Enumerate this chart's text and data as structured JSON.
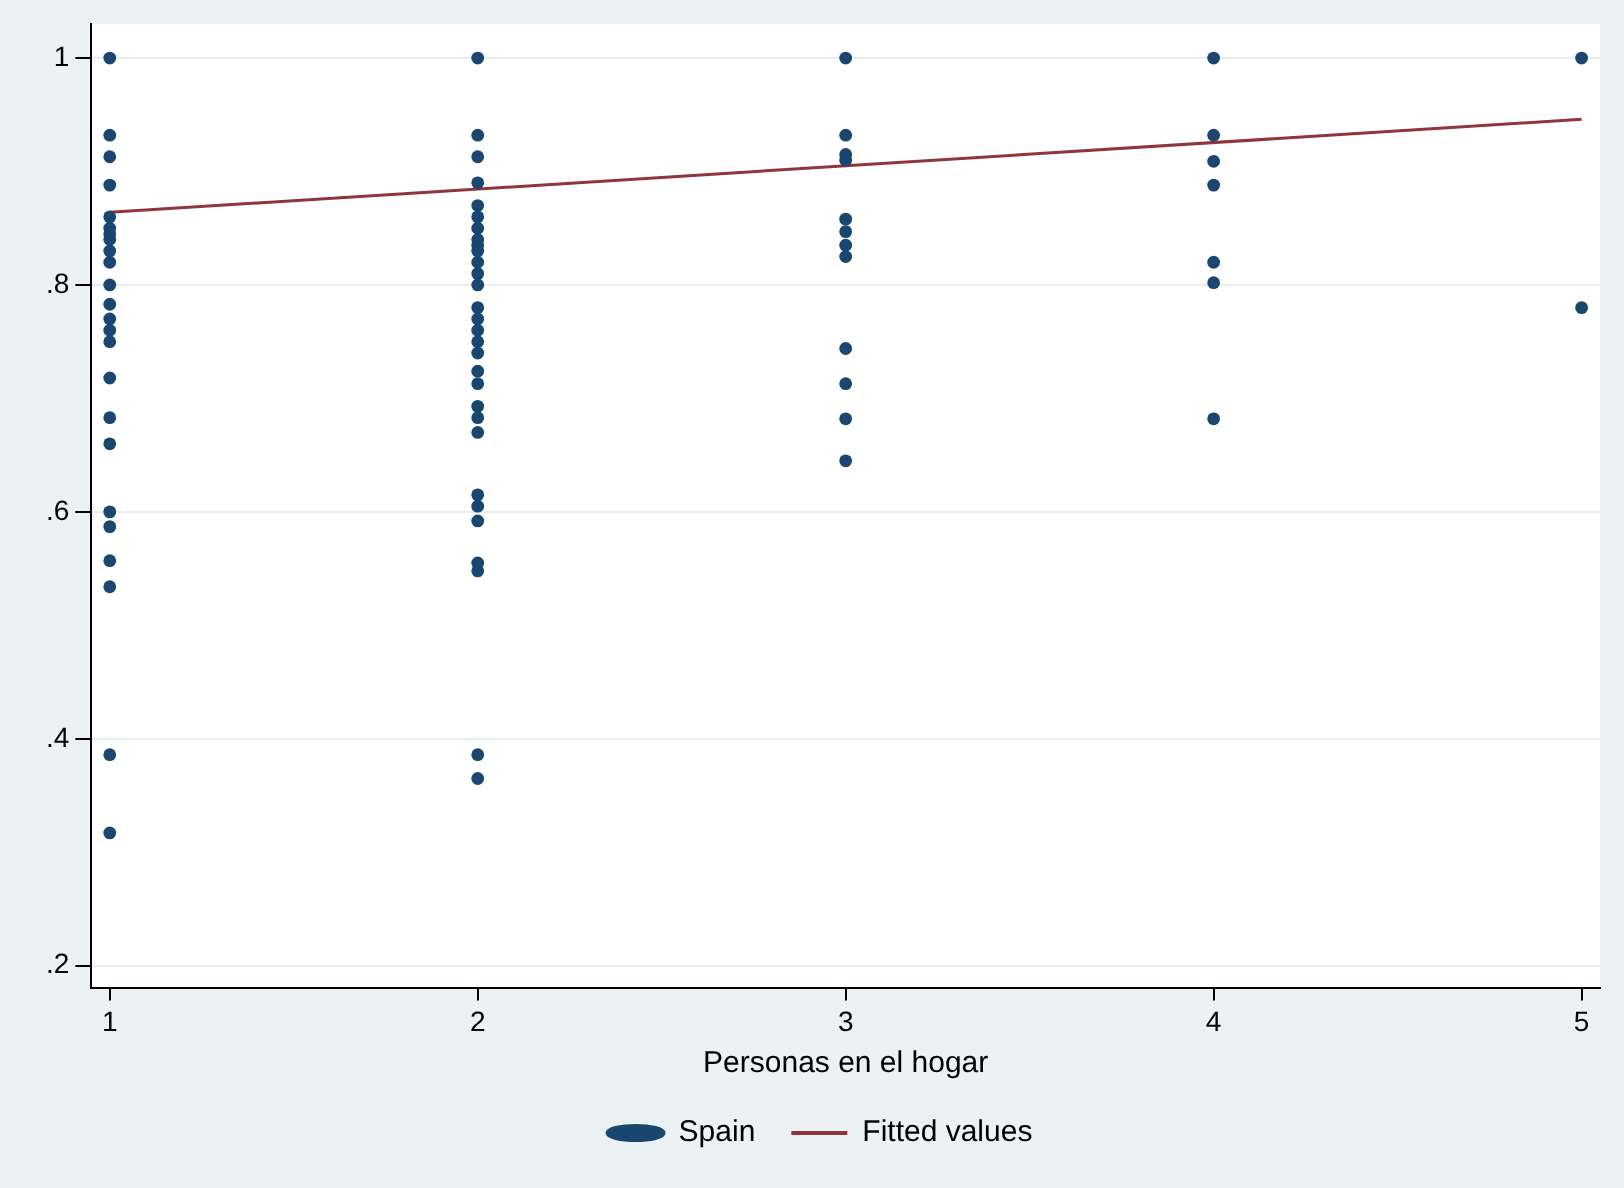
{
  "chart_data": {
    "type": "scatter",
    "xlabel": "Personas en el hogar",
    "xlim": [
      0.95,
      5.05
    ],
    "xticks": [
      1,
      2,
      3,
      4,
      5
    ],
    "ylim": [
      0.18,
      1.03
    ],
    "yticks": [
      {
        "value": 0.2,
        "label": ".2"
      },
      {
        "value": 0.4,
        "label": ".4"
      },
      {
        "value": 0.6,
        "label": ".6"
      },
      {
        "value": 0.8,
        "label": ".8"
      },
      1
    ],
    "grid": "y",
    "legend": "bottom",
    "marker": "circle",
    "series": [
      {
        "name": "Spain",
        "color": "#1a476f",
        "x": [
          1,
          1,
          1,
          1,
          1,
          1,
          1,
          1,
          1,
          1,
          1,
          1,
          1,
          1,
          1,
          1,
          1,
          1,
          1,
          1,
          1,
          1,
          1,
          1,
          2,
          2,
          2,
          2,
          2,
          2,
          2,
          2,
          2,
          2,
          2,
          2,
          2,
          2,
          2,
          2,
          2,
          2,
          2,
          2,
          2,
          2,
          2,
          2,
          2,
          2,
          2,
          2,
          2,
          2,
          3,
          3,
          3,
          3,
          3,
          3,
          3,
          3,
          3,
          3,
          3,
          3,
          4,
          4,
          4,
          4,
          4,
          4,
          4,
          5,
          5
        ],
        "values": [
          1.0,
          0.932,
          0.913,
          0.888,
          0.86,
          0.85,
          0.84,
          0.83,
          0.82,
          0.8,
          0.783,
          0.77,
          0.76,
          0.75,
          0.718,
          0.683,
          0.66,
          0.6,
          0.587,
          0.557,
          0.534,
          0.386,
          0.317,
          0.845,
          1.0,
          0.932,
          0.913,
          0.89,
          0.87,
          0.86,
          0.85,
          0.84,
          0.83,
          0.82,
          0.8,
          0.78,
          0.77,
          0.75,
          0.74,
          0.724,
          0.713,
          0.693,
          0.683,
          0.67,
          0.615,
          0.605,
          0.592,
          0.555,
          0.548,
          0.386,
          0.365,
          0.81,
          0.835,
          0.76,
          1.0,
          0.932,
          0.915,
          0.91,
          0.858,
          0.847,
          0.835,
          0.825,
          0.744,
          0.713,
          0.682,
          0.645,
          1.0,
          0.932,
          0.909,
          0.888,
          0.82,
          0.802,
          0.682,
          1.0,
          0.78
        ]
      },
      {
        "name": "Fitted values",
        "type": "line",
        "color": "#90353b",
        "marker": "none",
        "x": [
          1,
          5
        ],
        "values": [
          0.864,
          0.946
        ]
      }
    ]
  }
}
